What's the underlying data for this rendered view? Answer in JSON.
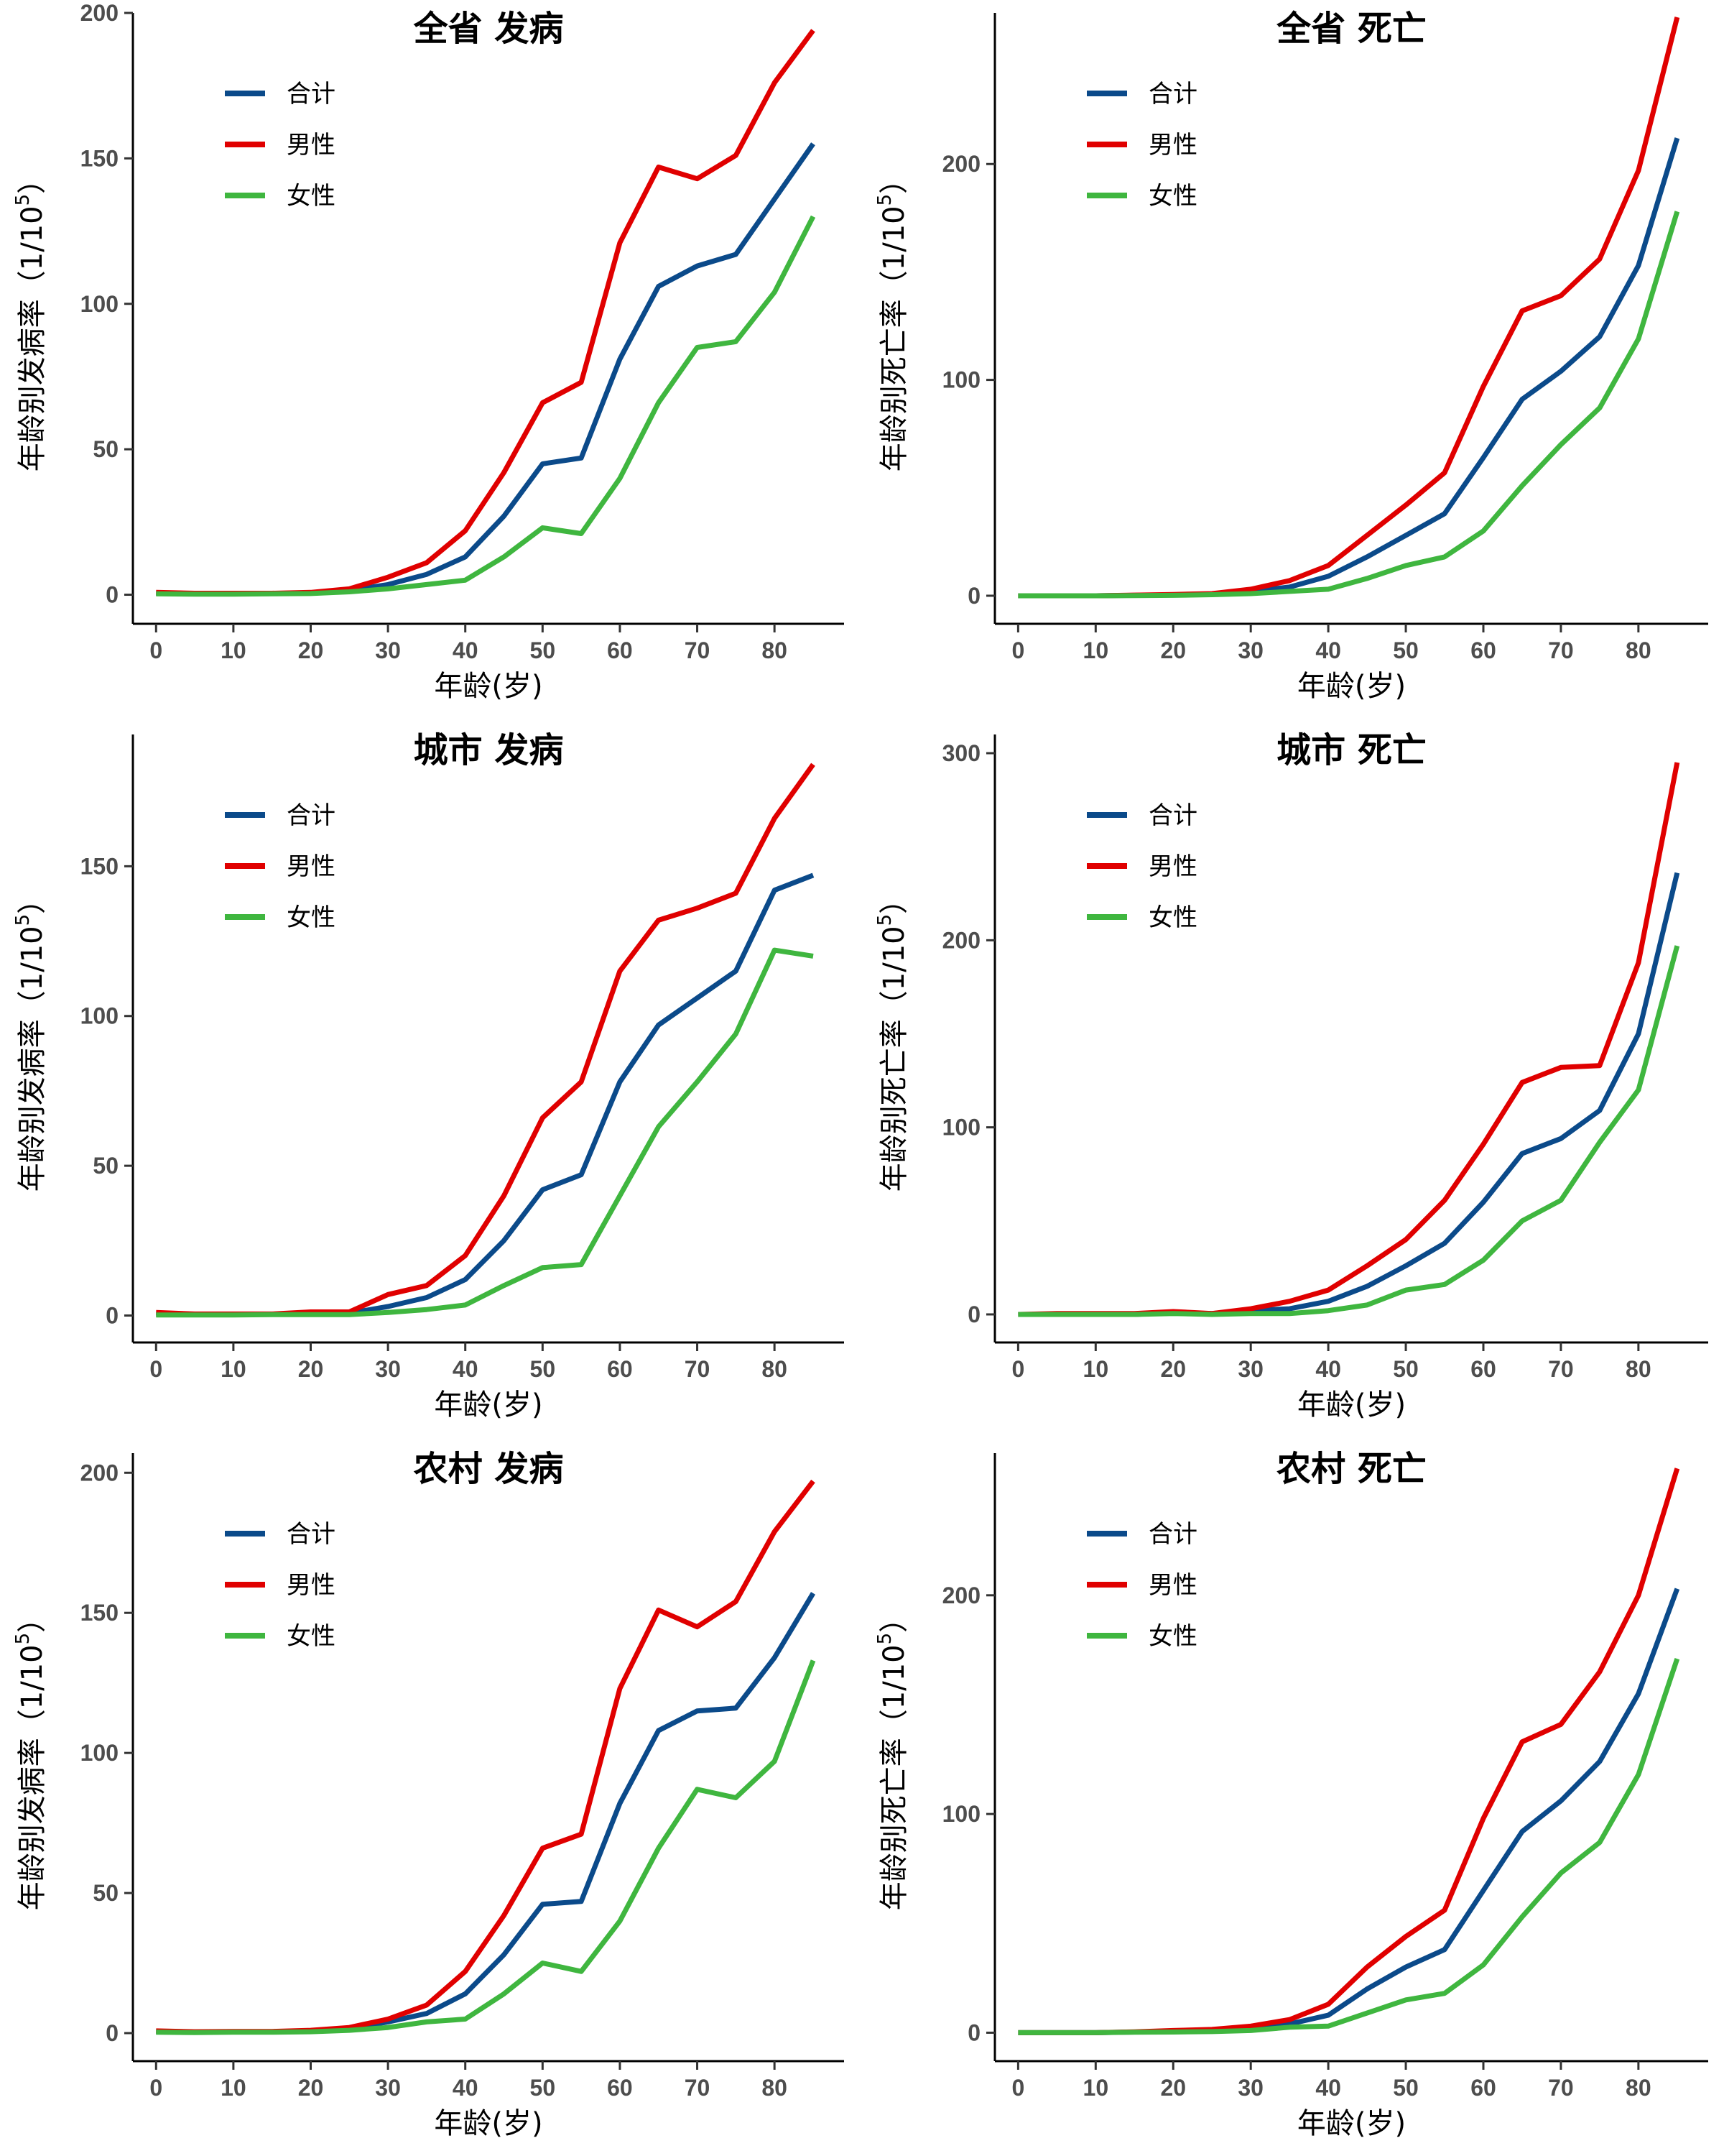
{
  "figure": {
    "xlabel": "年龄(岁)",
    "colors": {
      "合计": "#0b4a8a",
      "男性": "#e00000",
      "女性": "#3fb63f"
    },
    "legend": [
      "合计",
      "男性",
      "女性"
    ]
  },
  "chart_data": [
    {
      "type": "line",
      "title": "全省 发病",
      "xlabel": "年龄(岁)",
      "ylabel_main": "年龄别发病率",
      "ylabel_unit_prefix": "（1/10",
      "ylabel_unit_exp": "5",
      "ylabel_unit_suffix": "）",
      "xlim": [
        -3,
        89
      ],
      "ylim": [
        -10,
        200
      ],
      "xticks": [
        0,
        10,
        20,
        30,
        40,
        50,
        60,
        70,
        80
      ],
      "yticks": [
        0,
        50,
        100,
        150,
        200
      ],
      "x": [
        0,
        5,
        10,
        15,
        20,
        25,
        30,
        35,
        40,
        45,
        50,
        55,
        60,
        65,
        70,
        75,
        80,
        85
      ],
      "legend_position": "top-left",
      "series": [
        {
          "name": "合计",
          "color": "#0b4a8a",
          "values": [
            0.5,
            0.3,
            0.3,
            0.4,
            0.6,
            1.5,
            3.5,
            7,
            13,
            27,
            45,
            47,
            81,
            106,
            113,
            117,
            136,
            155
          ]
        },
        {
          "name": "男性",
          "color": "#e00000",
          "values": [
            0.8,
            0.5,
            0.5,
            0.5,
            0.8,
            2,
            6,
            11,
            22,
            42,
            66,
            73,
            121,
            147,
            143,
            151,
            176,
            194
          ]
        },
        {
          "name": "女性",
          "color": "#3fb63f",
          "values": [
            0.3,
            0.2,
            0.2,
            0.3,
            0.4,
            1,
            2,
            3.5,
            5,
            13,
            23,
            21,
            40,
            66,
            85,
            87,
            104,
            130
          ]
        }
      ]
    },
    {
      "type": "line",
      "title": "全省 死亡",
      "xlabel": "年龄(岁)",
      "ylabel_main": "年龄别死亡率",
      "ylabel_unit_prefix": "（1/10",
      "ylabel_unit_exp": "5",
      "ylabel_unit_suffix": "）",
      "xlim": [
        -3,
        89
      ],
      "ylim": [
        -13,
        270
      ],
      "xticks": [
        0,
        10,
        20,
        30,
        40,
        50,
        60,
        70,
        80
      ],
      "yticks": [
        0,
        100,
        200
      ],
      "x": [
        0,
        5,
        10,
        15,
        20,
        25,
        30,
        35,
        40,
        45,
        50,
        55,
        60,
        65,
        70,
        75,
        80,
        85
      ],
      "legend_position": "top-left",
      "series": [
        {
          "name": "合计",
          "color": "#0b4a8a",
          "values": [
            0,
            0,
            0,
            0.2,
            0.4,
            0.8,
            2,
            4,
            9,
            18,
            28,
            38,
            64,
            91,
            104,
            120,
            153,
            212
          ]
        },
        {
          "name": "男性",
          "color": "#e00000",
          "values": [
            0,
            0,
            0,
            0.3,
            0.6,
            1,
            3,
            7,
            14,
            28,
            42,
            57,
            97,
            132,
            139,
            156,
            197,
            268
          ]
        },
        {
          "name": "女性",
          "color": "#3fb63f",
          "values": [
            0,
            0,
            0,
            0.1,
            0.2,
            0.5,
            1,
            2,
            3,
            8,
            14,
            18,
            30,
            51,
            70,
            87,
            119,
            178
          ]
        }
      ]
    },
    {
      "type": "line",
      "title": "城市 发病",
      "xlabel": "年龄(岁)",
      "ylabel_main": "年龄别发病率",
      "ylabel_unit_prefix": "（1/10",
      "ylabel_unit_exp": "5",
      "ylabel_unit_suffix": "）",
      "xlim": [
        -3,
        89
      ],
      "ylim": [
        -9,
        194
      ],
      "xticks": [
        0,
        10,
        20,
        30,
        40,
        50,
        60,
        70,
        80
      ],
      "yticks": [
        0,
        50,
        100,
        150
      ],
      "x": [
        0,
        5,
        10,
        15,
        20,
        25,
        30,
        35,
        40,
        45,
        50,
        55,
        60,
        65,
        70,
        75,
        80,
        85
      ],
      "legend_position": "top-left",
      "series": [
        {
          "name": "合计",
          "color": "#0b4a8a",
          "values": [
            0.5,
            0.3,
            0.3,
            0.4,
            0.6,
            0.8,
            3,
            6,
            12,
            25,
            42,
            47,
            78,
            97,
            106,
            115,
            142,
            147
          ]
        },
        {
          "name": "男性",
          "color": "#e00000",
          "values": [
            1,
            0.5,
            0.5,
            0.5,
            1.2,
            1.2,
            7,
            10,
            20,
            40,
            66,
            78,
            115,
            132,
            136,
            141,
            166,
            184
          ]
        },
        {
          "name": "女性",
          "color": "#3fb63f",
          "values": [
            0.2,
            0.2,
            0.2,
            0.3,
            0.3,
            0.3,
            1,
            2,
            3.5,
            10,
            16,
            17,
            40,
            63,
            78,
            94,
            122,
            120
          ]
        }
      ]
    },
    {
      "type": "line",
      "title": "城市 死亡",
      "xlabel": "年龄(岁)",
      "ylabel_main": "年龄别死亡率",
      "ylabel_unit_prefix": "（1/10",
      "ylabel_unit_exp": "5",
      "ylabel_unit_suffix": "）",
      "xlim": [
        -3,
        89
      ],
      "ylim": [
        -15,
        310
      ],
      "xticks": [
        0,
        10,
        20,
        30,
        40,
        50,
        60,
        70,
        80
      ],
      "yticks": [
        0,
        100,
        200,
        300
      ],
      "x": [
        0,
        5,
        10,
        15,
        20,
        25,
        30,
        35,
        40,
        45,
        50,
        55,
        60,
        65,
        70,
        75,
        80,
        85
      ],
      "legend_position": "top-left",
      "series": [
        {
          "name": "合计",
          "color": "#0b4a8a",
          "values": [
            0,
            0,
            0,
            0,
            1,
            0.5,
            2,
            3,
            7,
            15,
            26,
            38,
            60,
            86,
            94,
            109,
            150,
            236
          ]
        },
        {
          "name": "男性",
          "color": "#e00000",
          "values": [
            0,
            0.5,
            0.5,
            0.5,
            1.5,
            0.5,
            3,
            7,
            13,
            26,
            40,
            61,
            91,
            124,
            132,
            133,
            188,
            295
          ]
        },
        {
          "name": "女性",
          "color": "#3fb63f",
          "values": [
            0,
            0,
            0,
            0,
            0.5,
            0,
            0.5,
            0.5,
            2,
            5,
            13,
            16,
            29,
            50,
            61,
            92,
            120,
            197
          ]
        }
      ]
    },
    {
      "type": "line",
      "title": "农村 发病",
      "xlabel": "年龄(岁)",
      "ylabel_main": "年龄别发病率",
      "ylabel_unit_prefix": "（1/10",
      "ylabel_unit_exp": "5",
      "ylabel_unit_suffix": "）",
      "xlim": [
        -3,
        89
      ],
      "ylim": [
        -10,
        207
      ],
      "xticks": [
        0,
        10,
        20,
        30,
        40,
        50,
        60,
        70,
        80
      ],
      "yticks": [
        0,
        50,
        100,
        150,
        200
      ],
      "x": [
        0,
        5,
        10,
        15,
        20,
        25,
        30,
        35,
        40,
        45,
        50,
        55,
        60,
        65,
        70,
        75,
        80,
        85
      ],
      "legend_position": "top-left",
      "series": [
        {
          "name": "合计",
          "color": "#0b4a8a",
          "values": [
            0.5,
            0.3,
            0.5,
            0.5,
            0.8,
            1.5,
            4,
            7,
            14,
            28,
            46,
            47,
            82,
            108,
            115,
            116,
            134,
            157
          ]
        },
        {
          "name": "男性",
          "color": "#e00000",
          "values": [
            0.8,
            0.5,
            0.6,
            0.6,
            1,
            2,
            5,
            10,
            22,
            42,
            66,
            71,
            123,
            151,
            145,
            154,
            179,
            197
          ]
        },
        {
          "name": "女性",
          "color": "#3fb63f",
          "values": [
            0.3,
            0.2,
            0.3,
            0.3,
            0.5,
            1,
            2,
            4,
            5,
            14,
            25,
            22,
            40,
            66,
            87,
            84,
            97,
            133
          ]
        }
      ]
    },
    {
      "type": "line",
      "title": "农村 死亡",
      "xlabel": "年龄(岁)",
      "ylabel_main": "年龄别死亡率",
      "ylabel_unit_prefix": "（1/10",
      "ylabel_unit_exp": "5",
      "ylabel_unit_suffix": "）",
      "xlim": [
        -3,
        89
      ],
      "ylim": [
        -13,
        265
      ],
      "xticks": [
        0,
        10,
        20,
        30,
        40,
        50,
        60,
        70,
        80
      ],
      "yticks": [
        0,
        100,
        200
      ],
      "x": [
        0,
        5,
        10,
        15,
        20,
        25,
        30,
        35,
        40,
        45,
        50,
        55,
        60,
        65,
        70,
        75,
        80,
        85
      ],
      "legend_position": "top-left",
      "series": [
        {
          "name": "合计",
          "color": "#0b4a8a",
          "values": [
            0,
            0,
            0,
            0.3,
            0.5,
            1,
            2,
            4,
            8,
            20,
            30,
            38,
            65,
            92,
            106,
            124,
            155,
            203
          ]
        },
        {
          "name": "男性",
          "color": "#e00000",
          "values": [
            0,
            0,
            0,
            0.4,
            1,
            1.5,
            3,
            6,
            13,
            30,
            44,
            56,
            98,
            133,
            141,
            165,
            200,
            258
          ]
        },
        {
          "name": "女性",
          "color": "#3fb63f",
          "values": [
            0,
            0,
            0,
            0.2,
            0.3,
            0.5,
            1,
            2.5,
            3,
            9,
            15,
            18,
            31,
            53,
            73,
            87,
            118,
            171
          ]
        }
      ]
    }
  ]
}
